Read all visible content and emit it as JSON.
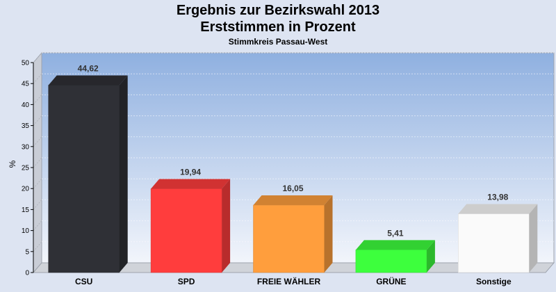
{
  "chart_data": {
    "type": "bar",
    "title": "Ergebnis zur Bezirkswahl 2013",
    "subtitle": "Erststimmen in Prozent",
    "caption": "Stimmkreis Passau-West",
    "ylabel": "%",
    "xlabel": "",
    "ylim": [
      0,
      50
    ],
    "yticks": [
      0,
      5,
      10,
      15,
      20,
      25,
      30,
      35,
      40,
      45,
      50
    ],
    "grid": true,
    "categories": [
      "CSU",
      "SPD",
      "FREIE WÄHLER",
      "GRÜNE",
      "Sonstige"
    ],
    "values": [
      44.62,
      19.94,
      16.05,
      5.41,
      13.98
    ],
    "value_labels": [
      "44,62",
      "19,94",
      "16,05",
      "5,41",
      "13,98"
    ],
    "colors": [
      "#2f3036",
      "#ff3d3d",
      "#ff9e3d",
      "#3dff3d",
      "#fafafa"
    ]
  }
}
